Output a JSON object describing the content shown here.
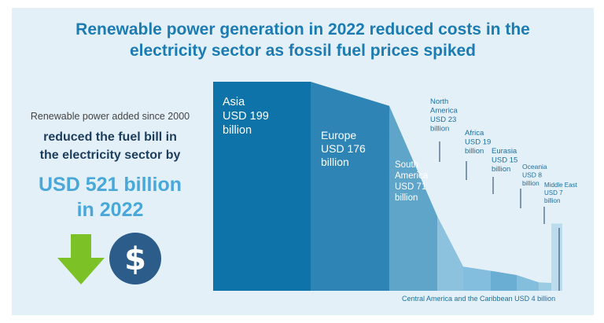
{
  "title": "Renewable power generation in 2022 reduced costs in the\nelectricity sector as fossil fuel prices spiked",
  "left_panel": {
    "line1": "Renewable power added since 2000",
    "line2": "reduced the fuel bill in\nthe electricity sector by",
    "amount": "USD 521 billion",
    "year": "in 2022",
    "icons": [
      "down-arrow-icon",
      "dollar-coin-icon"
    ]
  },
  "colors": {
    "title": "#1c7cb1",
    "amount": "#4aa8d9",
    "arrow": "#7cc126",
    "coin": "#2b5c8a",
    "background": "#e3f0f8"
  },
  "chart_data": {
    "type": "area",
    "title": "",
    "xlabel": "",
    "ylabel": "",
    "unit": "USD billion",
    "categories": [
      "Asia",
      "Europe",
      "South America",
      "North America",
      "Africa",
      "Eurasia",
      "Oceania",
      "Middle East",
      "Central America and the Caribbean"
    ],
    "values": [
      199,
      176,
      71,
      23,
      19,
      15,
      8,
      7,
      4
    ],
    "value_labels": [
      "USD 199\nbillion",
      "USD 176\nbillion",
      "USD 71\nbillion",
      "USD 23\nbillion",
      "USD 19\nbillion",
      "USD 15\nbillion",
      "USD 8\nbillion",
      "USD 7\nbillion",
      "USD 4 billion"
    ],
    "category_labels": [
      "Asia",
      "Europe",
      "South\nAmerica",
      "North\nAmerica",
      "Africa",
      "Eurasia",
      "Oceania",
      "Middle East",
      "Central America and the Caribbean"
    ],
    "colors": [
      "#0e73a8",
      "#2e85b5",
      "#5ea5c9",
      "#8cc2de",
      "#84bede",
      "#6aaed4",
      "#84bedd",
      "#9ccbe4",
      "#bcdcee"
    ],
    "grid": false,
    "legend": "none"
  }
}
